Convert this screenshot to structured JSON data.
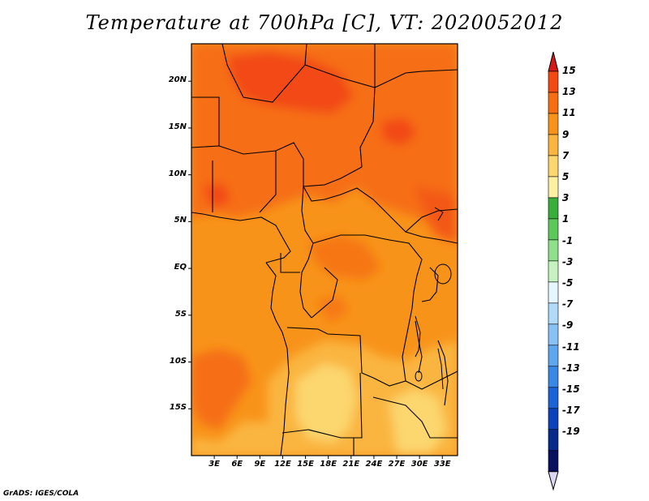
{
  "title": "Temperature at 700hPa [C], VT: 2020052012",
  "credit": "GrADS: IGES/COLA",
  "map": {
    "region": "Central Africa",
    "lon_range": [
      0,
      35
    ],
    "lat_range": [
      -20,
      24
    ],
    "lat_labels": [
      "20N",
      "15N",
      "10N",
      "5N",
      "EQ",
      "5S",
      "10S",
      "15S"
    ],
    "lat_values": [
      20,
      15,
      10,
      5,
      0,
      -5,
      -10,
      -15
    ],
    "lon_labels": [
      "3E",
      "6E",
      "9E",
      "12E",
      "15E",
      "18E",
      "21E",
      "24E",
      "27E",
      "30E",
      "33E"
    ],
    "lon_values": [
      3,
      6,
      9,
      12,
      15,
      18,
      21,
      24,
      27,
      30,
      33
    ]
  },
  "colorbar": {
    "levels": [
      "15",
      "13",
      "11",
      "9",
      "7",
      "5",
      "3",
      "1",
      "-1",
      "-3",
      "-5",
      "-7",
      "-9",
      "-11",
      "-13",
      "-15",
      "-17",
      "-19"
    ],
    "colors": [
      "#e8261c",
      "#f24a12",
      "#f66e12",
      "#f8931a",
      "#fab540",
      "#fcd66e",
      "#fdf0a2",
      "#3aae3a",
      "#5cc85c",
      "#8ee08a",
      "#c6f2c0",
      "#e6f6ff",
      "#b0daf8",
      "#88c2f4",
      "#5ea6ee",
      "#3a88e6",
      "#1c64d6",
      "#0e42b8",
      "#082a8c",
      "#0a1060",
      "#dcd8f4"
    ],
    "top_arrow_color": "#d71818",
    "bottom_arrow_color": "#dcd8f4"
  }
}
